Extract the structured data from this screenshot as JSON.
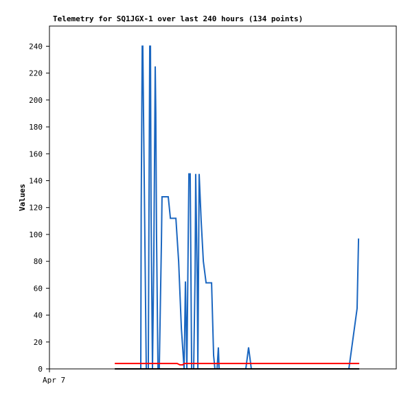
{
  "chart_data": {
    "type": "line",
    "title": "Telemetry for SQ1JGX-1 over last 240 hours (134 points)",
    "y_label": "Values",
    "xlim": [
      0,
      240
    ],
    "xticks": [
      {
        "value": 0,
        "label": "Apr 7"
      }
    ],
    "ylim": [
      0,
      255
    ],
    "yticks": [
      0,
      20,
      40,
      60,
      80,
      100,
      120,
      140,
      160,
      180,
      200,
      220,
      240
    ],
    "series": [
      {
        "color": "#000000",
        "x": [
          45.2,
          214.4
        ],
        "values": [
          0,
          0
        ]
      },
      {
        "color": "#ff0000",
        "x": [
          45.2,
          88.4,
          90.3,
          92.2,
          93.2,
          214.4
        ],
        "values": [
          4,
          4,
          3,
          3,
          4,
          4
        ]
      },
      {
        "color": "#1a66c0",
        "x": [
          63.2,
          63.5,
          64.2,
          64.6,
          65.1,
          66.1,
          67.0,
          68.4,
          69.4,
          69.9,
          70.3,
          71.3,
          72.2,
          73.2,
          73.6,
          74.1,
          75.1,
          76.0,
          77.5,
          77.9,
          82.2,
          83.7,
          87.5,
          89.4,
          91.3,
          93.2,
          94.1,
          95.1,
          96.5,
          97.4,
          98.4,
          99.8,
          100.8,
          101.2,
          102.2,
          102.7,
          103.6,
          104.6,
          105.0,
          106.5,
          108.4,
          112.2,
          113.6,
          114.5,
          116.0,
          116.9,
          117.4,
          135.9,
          137.8,
          139.7,
          207.2,
          212.9,
          213.9
        ],
        "values": [
          0,
          120,
          240,
          240,
          190,
          90,
          0,
          0,
          240,
          240,
          120,
          0,
          80,
          225,
          190,
          100,
          0,
          0,
          95,
          128,
          128,
          112,
          112,
          80,
          30,
          0,
          65,
          0,
          145,
          145,
          0,
          0,
          72,
          145,
          72,
          0,
          145,
          120,
          110,
          80,
          64,
          64,
          10,
          0,
          0,
          16,
          0,
          0,
          16,
          0,
          0,
          45,
          97
        ]
      }
    ]
  }
}
